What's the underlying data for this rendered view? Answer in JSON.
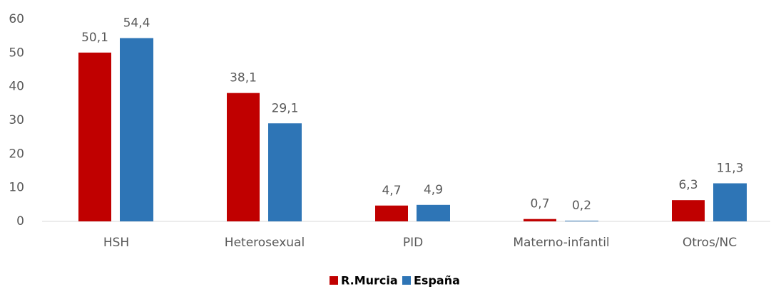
{
  "chart_data": {
    "type": "bar",
    "categories": [
      "HSH",
      "Heterosexual",
      "PID",
      "Materno-infantil",
      "Otros/NC"
    ],
    "series": [
      {
        "name": "R.Murcia",
        "color": "#c00000",
        "values": [
          50.1,
          38.1,
          4.7,
          0.7,
          6.3
        ],
        "value_labels": [
          "50,1",
          "38,1",
          "4,7",
          "0,7",
          "6,3"
        ]
      },
      {
        "name": "España",
        "color": "#2e75b6",
        "values": [
          54.4,
          29.1,
          4.9,
          0.2,
          11.3
        ],
        "value_labels": [
          "54,4",
          "29,1",
          "4,9",
          "0,2",
          "11,3"
        ]
      }
    ],
    "ylim": [
      0,
      60
    ],
    "yticks": [
      0,
      10,
      20,
      30,
      40,
      50,
      60
    ],
    "grid": false,
    "legend": "bottom"
  }
}
